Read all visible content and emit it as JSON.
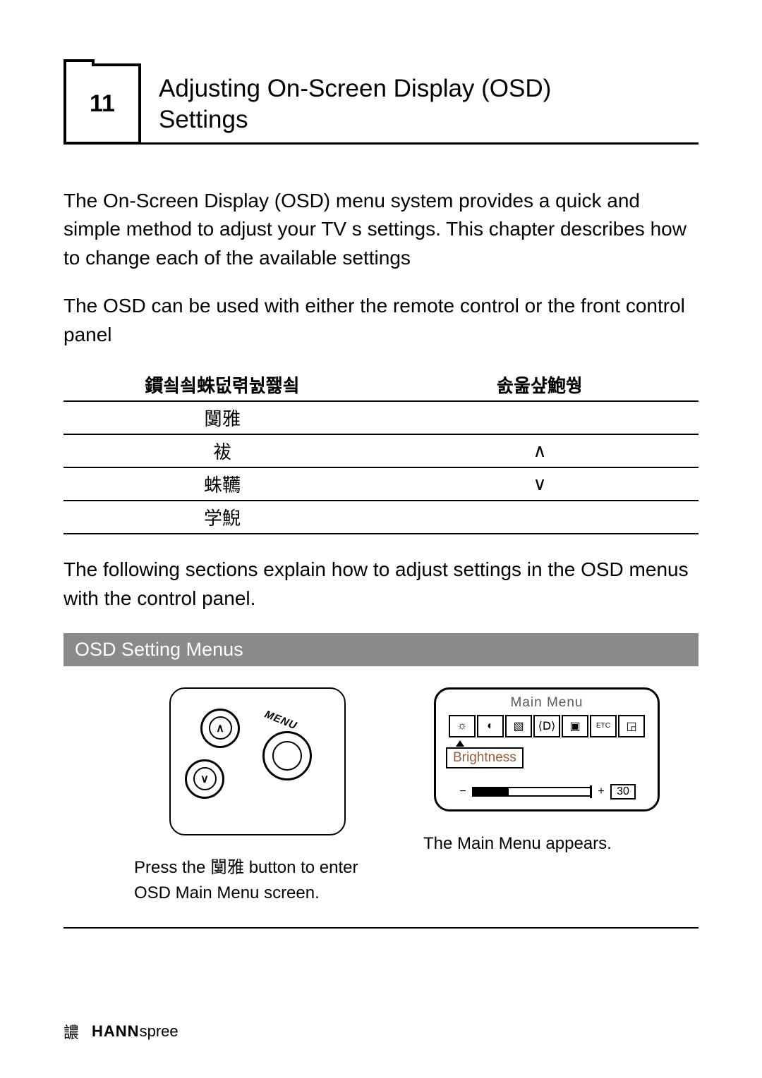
{
  "colors": {
    "text": "#000000",
    "panel_header_bg": "#8a8a8a",
    "panel_header_text": "#ffffff",
    "osd_title_text": "#5a5a5a",
    "osd_brightness_text": "#9a5a3a"
  },
  "fonts": {
    "body_size_pt": 21,
    "title_size_pt": 26,
    "panel_header_size_pt": 20,
    "caption_size_pt": 18
  },
  "chapter": {
    "number": "11",
    "title_line1": "Adjusting On-Screen Display (OSD)",
    "title_line2": "Settings"
  },
  "intro": {
    "p1": "The On-Screen Display (OSD) menu system provides a quick and simple method to adjust your TV s settings. This chapter describes how to change each of the available settings",
    "p2": "The OSD can be used with either the remote control or the front control panel"
  },
  "table": {
    "headers": [
      "鏆쇸쇸蛛덦렦눬쬃쇸",
      "솘욾샾鮑쒕"
    ],
    "rows": [
      {
        "c0": "闅雅",
        "c1": ""
      },
      {
        "c0": "袚",
        "c1": "∧"
      },
      {
        "c0": "蛛韉",
        "c1": "∨"
      },
      {
        "c0": "学鯢",
        "c1": ""
      }
    ]
  },
  "para_after_table": "The following sections explain how to adjust settings in the OSD menus with the control panel.",
  "panel": {
    "header": "OSD Setting Menus",
    "left": {
      "menu_label": "MENU",
      "up_glyph": "∧",
      "down_glyph": "∨",
      "caption": "Press the 闅雅  button to enter OSD Main Menu screen."
    },
    "right": {
      "osd_title": "Main  Menu",
      "icons": [
        "☼",
        "◐",
        "▧",
        "⟨Ⅾ⟩",
        "▣",
        "ETC",
        "◲"
      ],
      "brightness_label": "Brightness",
      "slider_minus": "−",
      "slider_plus": "+",
      "slider_value": "30",
      "slider_percent": 30,
      "caption": "The Main Menu appears."
    }
  },
  "footer": {
    "page_marker": "譨",
    "brand_bold": "HANN",
    "brand_rest": "spree"
  }
}
